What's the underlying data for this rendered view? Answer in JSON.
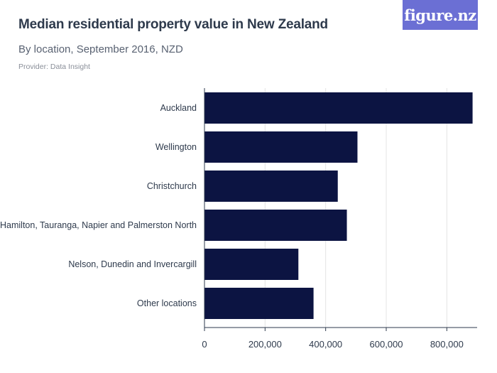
{
  "header": {
    "title": "Median residential property value in New Zealand",
    "subtitle": "By location, September 2016, NZD",
    "provider": "Provider: Data Insight",
    "logo_text": "figure.nz"
  },
  "colors": {
    "bar": "#0c1442",
    "logo_bg": "#6b6fd4",
    "grid": "#e4e4e4",
    "axis": "#2e3a4c"
  },
  "chart_data": {
    "type": "bar",
    "orientation": "horizontal",
    "categories": [
      "Auckland",
      "Wellington",
      "Christchurch",
      "Hamilton, Tauranga, Napier and Palmerston North",
      "Nelson, Dunedin and Invercargill",
      "Other locations"
    ],
    "values": [
      885000,
      505000,
      440000,
      470000,
      310000,
      360000
    ],
    "xlim": [
      0,
      900000
    ],
    "xticks": [
      0,
      200000,
      400000,
      600000,
      800000
    ],
    "xtick_labels": [
      "0",
      "200,000",
      "400,000",
      "600,000",
      "800,000"
    ],
    "grid": true
  }
}
